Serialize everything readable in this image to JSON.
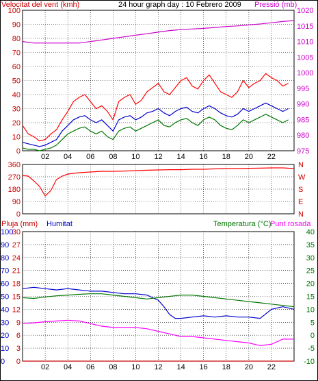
{
  "header": {
    "left": "Velocitat del vent (kmh)",
    "center": "24 hour graph day : 10 Febrero 2009",
    "right": "Pressió (mb)"
  },
  "colors": {
    "wind_axis": "#cc0000",
    "gust": "#ff0000",
    "avg": "#0000cc",
    "low": "#007700",
    "pressure": "#cc00cc",
    "humidity": "#0000cc",
    "temp": "#007700",
    "dew": "#ff00ff",
    "rain": "#cc0000",
    "grid": "#000000"
  },
  "chart_data": [
    {
      "type": "line",
      "id": "wind-pressure",
      "title": "24 hour graph day : 10 Febrero 2009",
      "ylabel": "Velocitat del vent (kmh)",
      "y2label": "Pressió (mb)",
      "x_ticks": [
        "02",
        "04",
        "06",
        "08",
        "10",
        "12",
        "14",
        "16",
        "18",
        "20",
        "22"
      ],
      "x_range": [
        0,
        24
      ],
      "ylim": [
        0,
        100
      ],
      "yticks": [
        0,
        10,
        20,
        30,
        40,
        50,
        60,
        70,
        80,
        90,
        100
      ],
      "y2lim": [
        975,
        1020
      ],
      "y2ticks": [
        975,
        980,
        985,
        990,
        995,
        1000,
        1005,
        1010,
        1015,
        1020
      ],
      "series": [
        {
          "key": "gust",
          "x": [
            0,
            0.5,
            1,
            1.5,
            2,
            2.5,
            3,
            3.5,
            4,
            4.5,
            5,
            5.5,
            6,
            6.5,
            7,
            7.5,
            8,
            8.5,
            9,
            9.5,
            10,
            10.5,
            11,
            11.5,
            12,
            12.5,
            13,
            13.5,
            14,
            14.5,
            15,
            15.5,
            16,
            16.5,
            17,
            17.5,
            18,
            18.5,
            19,
            19.5,
            20,
            20.5,
            21,
            21.5,
            22,
            22.5,
            23,
            23.5
          ],
          "y": [
            18,
            12,
            10,
            7,
            8,
            12,
            15,
            22,
            28,
            35,
            38,
            40,
            35,
            30,
            32,
            28,
            22,
            35,
            38,
            40,
            33,
            36,
            42,
            45,
            48,
            42,
            40,
            45,
            50,
            52,
            46,
            44,
            50,
            54,
            48,
            42,
            40,
            38,
            42,
            50,
            45,
            48,
            50,
            55,
            52,
            50,
            46,
            48
          ]
        },
        {
          "key": "avg",
          "x": [
            0,
            0.5,
            1,
            1.5,
            2,
            2.5,
            3,
            3.5,
            4,
            4.5,
            5,
            5.5,
            6,
            6.5,
            7,
            7.5,
            8,
            8.5,
            9,
            9.5,
            10,
            10.5,
            11,
            11.5,
            12,
            12.5,
            13,
            13.5,
            14,
            14.5,
            15,
            15.5,
            16,
            16.5,
            17,
            17.5,
            18,
            18.5,
            19,
            19.5,
            20,
            20.5,
            21,
            21.5,
            22,
            22.5,
            23,
            23.5
          ],
          "y": [
            6,
            5,
            4,
            3,
            4,
            6,
            8,
            14,
            18,
            22,
            24,
            25,
            22,
            20,
            22,
            18,
            14,
            22,
            24,
            25,
            22,
            24,
            27,
            28,
            30,
            27,
            25,
            28,
            30,
            31,
            28,
            27,
            30,
            32,
            30,
            27,
            25,
            24,
            26,
            30,
            28,
            30,
            32,
            34,
            32,
            30,
            28,
            30
          ]
        },
        {
          "key": "low",
          "x": [
            0,
            0.5,
            1,
            1.5,
            2,
            2.5,
            3,
            3.5,
            4,
            4.5,
            5,
            5.5,
            6,
            6.5,
            7,
            7.5,
            8,
            8.5,
            9,
            9.5,
            10,
            10.5,
            11,
            11.5,
            12,
            12.5,
            13,
            13.5,
            14,
            14.5,
            15,
            15.5,
            16,
            16.5,
            17,
            17.5,
            18,
            18.5,
            19,
            19.5,
            20,
            20.5,
            21,
            21.5,
            22,
            22.5,
            23,
            23.5
          ],
          "y": [
            2,
            1,
            1,
            0,
            1,
            2,
            4,
            8,
            12,
            14,
            16,
            17,
            14,
            12,
            14,
            10,
            8,
            14,
            16,
            17,
            14,
            16,
            18,
            20,
            22,
            18,
            17,
            20,
            22,
            23,
            20,
            18,
            22,
            24,
            22,
            18,
            16,
            15,
            18,
            22,
            20,
            22,
            24,
            26,
            24,
            22,
            20,
            22
          ]
        },
        {
          "key": "pressure",
          "axis": "y2",
          "x": [
            0,
            1,
            2,
            3,
            4,
            5,
            6,
            7,
            8,
            9,
            10,
            11,
            12,
            13,
            14,
            15,
            16,
            17,
            18,
            19,
            20,
            21,
            22,
            23,
            24
          ],
          "y": [
            1010,
            1009.5,
            1009.5,
            1009.5,
            1009.5,
            1009.5,
            1010,
            1010.5,
            1011,
            1011.5,
            1012,
            1012.5,
            1013,
            1013.5,
            1013.8,
            1014,
            1014.2,
            1014.5,
            1014.8,
            1015,
            1015.3,
            1015.6,
            1016,
            1016.4,
            1016.7
          ]
        }
      ]
    },
    {
      "type": "line",
      "id": "wind-direction",
      "ylim": [
        0,
        360
      ],
      "yticks": [
        0,
        90,
        180,
        270,
        360
      ],
      "y2ticks": [
        "N",
        "E",
        "S",
        "W",
        "N"
      ],
      "x_range": [
        0,
        24
      ],
      "series": [
        {
          "key": "direction",
          "x": [
            0,
            0.5,
            1,
            1.5,
            2,
            2.5,
            3,
            3.5,
            4,
            5,
            6,
            7,
            8,
            9,
            10,
            11,
            12,
            13,
            14,
            15,
            16,
            17,
            18,
            19,
            20,
            21,
            22,
            23,
            24
          ],
          "y": [
            280,
            275,
            240,
            200,
            130,
            170,
            250,
            275,
            290,
            300,
            305,
            310,
            310,
            312,
            315,
            318,
            320,
            322,
            322,
            325,
            325,
            328,
            330,
            330,
            332,
            333,
            335,
            335,
            330
          ]
        }
      ]
    },
    {
      "type": "line",
      "id": "rain-humidity-temperature",
      "labels": {
        "rain": "Pluja (mm)",
        "humidity": "Humitat",
        "temp": "Temperatura (°C)",
        "dew": "Punt rosada"
      },
      "left_ticks_humidity": [
        0,
        10,
        20,
        30,
        40,
        50,
        60,
        70,
        80,
        90,
        100
      ],
      "left_ticks_rain": [
        0,
        3,
        6,
        9,
        12,
        15,
        18,
        21,
        24,
        27,
        30
      ],
      "right_ticks_temp": [
        -10,
        -5,
        0,
        5,
        10,
        15,
        20,
        25,
        30,
        35,
        40
      ],
      "humidity_lim": [
        0,
        100
      ],
      "rain_lim": [
        0,
        30
      ],
      "temp_lim": [
        -10,
        40
      ],
      "x_range": [
        0,
        24
      ],
      "series": [
        {
          "key": "humidity",
          "x": [
            0,
            1,
            2,
            3,
            4,
            5,
            6,
            7,
            8,
            9,
            10,
            11,
            12,
            12.5,
            13,
            13.5,
            14,
            15,
            16,
            17,
            18,
            19,
            20,
            21,
            22,
            23,
            24
          ],
          "y": [
            56,
            57,
            56,
            55,
            56,
            55,
            54,
            54,
            53,
            52,
            52,
            51,
            47,
            42,
            36,
            33,
            33,
            34,
            35,
            34,
            35,
            34,
            34,
            33,
            40,
            42,
            40
          ]
        },
        {
          "key": "temperature",
          "x": [
            0,
            1,
            2,
            3,
            4,
            5,
            6,
            7,
            8,
            9,
            10,
            11,
            12,
            13,
            14,
            15,
            16,
            17,
            18,
            19,
            20,
            21,
            22,
            23,
            24
          ],
          "y": [
            14.5,
            14.2,
            14.8,
            15.2,
            15.5,
            15.8,
            16,
            16,
            15.5,
            15,
            14.5,
            14,
            14.5,
            15,
            15.5,
            15.5,
            15,
            14.5,
            14,
            13.5,
            13,
            12.5,
            12,
            11.5,
            11
          ]
        },
        {
          "key": "dewpoint",
          "x": [
            0,
            1,
            2,
            3,
            4,
            5,
            6,
            7,
            8,
            9,
            10,
            11,
            12,
            13,
            14,
            15,
            16,
            17,
            18,
            19,
            20,
            21,
            22,
            23,
            24
          ],
          "y": [
            4.5,
            4.8,
            5.2,
            5.5,
            5.8,
            5.5,
            4.5,
            3.5,
            3,
            3,
            3,
            2.5,
            1.5,
            0.5,
            -0.5,
            -0.5,
            -1,
            -1.5,
            -2,
            -2.5,
            -3,
            -4,
            -3.5,
            -1.5,
            -1.5
          ]
        },
        {
          "key": "rain",
          "x": [
            0,
            24
          ],
          "y": [
            0,
            0
          ]
        }
      ]
    }
  ]
}
